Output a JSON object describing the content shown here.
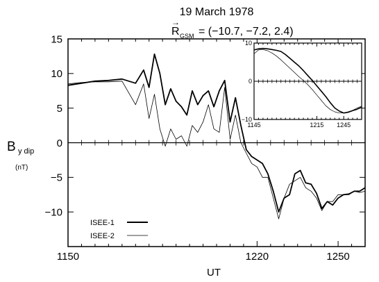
{
  "chart_data": [
    {
      "type": "line",
      "title": "19 March 1978",
      "subtitle": {
        "symbol": "R",
        "subscript": "GSM",
        "value": "= (−10.7, −7.2, 2.4)"
      },
      "xlabel": "UT",
      "ylabel": {
        "main": "B",
        "sub": "y dip",
        "unit": "(nT)"
      },
      "xlim": [
        1150,
        1260
      ],
      "ylim": [
        -15,
        15
      ],
      "xticks": [
        1150,
        1220,
        1250
      ],
      "xtick_labels": [
        "1150",
        "1220",
        "1250"
      ],
      "xtick_minor_step": 5,
      "yticks": [
        -10,
        -5,
        0,
        5,
        10,
        15
      ],
      "ytick_labels": [
        "−10",
        "−5",
        "0",
        "5",
        "10",
        "15"
      ],
      "zero_line": true,
      "legend": {
        "placement": "bottom-left",
        "entries": [
          {
            "label": "ISEE-1",
            "style": "thick"
          },
          {
            "label": "ISEE-2",
            "style": "thin"
          }
        ]
      },
      "series": [
        {
          "name": "ISEE-1",
          "style": "thick",
          "x": [
            1150,
            1155,
            1160,
            1165,
            1170,
            1175,
            1178,
            1180,
            1182,
            1184,
            1186,
            1188,
            1190,
            1192,
            1194,
            1196,
            1198,
            1200,
            1202,
            1204,
            1206,
            1208,
            1210,
            1212,
            1214,
            1216,
            1218,
            1220,
            1222,
            1224,
            1226,
            1228,
            1230,
            1232,
            1234,
            1236,
            1238,
            1240,
            1242,
            1244,
            1246,
            1248,
            1250,
            1252,
            1254,
            1256,
            1258,
            1260
          ],
          "y": [
            8.3,
            8.6,
            8.9,
            9.0,
            9.2,
            8.6,
            10.5,
            8.0,
            12.8,
            10.0,
            5.5,
            7.8,
            6.0,
            5.2,
            4.0,
            7.5,
            5.5,
            6.8,
            7.5,
            5.2,
            7.5,
            9.0,
            3.0,
            6.5,
            2.5,
            -1.0,
            -2.0,
            -2.5,
            -3.0,
            -4.5,
            -7.0,
            -10.0,
            -8.0,
            -7.5,
            -4.5,
            -4.0,
            -5.8,
            -6.0,
            -7.3,
            -9.5,
            -8.5,
            -9.0,
            -8.0,
            -7.5,
            -7.4,
            -7.0,
            -7.0,
            -6.5
          ]
        },
        {
          "name": "ISEE-2",
          "style": "thin",
          "x": [
            1150,
            1155,
            1160,
            1165,
            1170,
            1175,
            1178,
            1180,
            1182,
            1184,
            1186,
            1188,
            1190,
            1192,
            1194,
            1196,
            1198,
            1200,
            1202,
            1204,
            1206,
            1208,
            1210,
            1212,
            1214,
            1216,
            1218,
            1220,
            1222,
            1224,
            1226,
            1228,
            1230,
            1232,
            1234,
            1236,
            1238,
            1240,
            1242,
            1244,
            1246,
            1248,
            1250,
            1252,
            1254,
            1256,
            1258,
            1260
          ],
          "y": [
            8.5,
            8.7,
            8.8,
            8.8,
            8.9,
            5.5,
            8.5,
            3.5,
            7.0,
            2.0,
            -0.5,
            2.0,
            0.5,
            1.0,
            -0.5,
            2.5,
            1.5,
            3.0,
            5.5,
            2.0,
            1.5,
            8.0,
            0.5,
            4.0,
            0.0,
            -1.5,
            -3.0,
            -3.5,
            -5.0,
            -5.0,
            -8.0,
            -11.0,
            -8.0,
            -6.0,
            -5.5,
            -5.0,
            -6.5,
            -7.0,
            -8.0,
            -9.8,
            -8.5,
            -8.5,
            -7.5,
            -7.5,
            -7.5,
            -7.0,
            -7.2,
            -7.0
          ]
        }
      ]
    },
    {
      "type": "line",
      "title": "",
      "xlim": [
        1145,
        1265
      ],
      "ylim": [
        -10,
        10
      ],
      "xticks": [
        1145,
        1215,
        1245
      ],
      "xtick_labels": [
        "1145",
        "1215",
        "1245"
      ],
      "xtick_minor_step": 5,
      "yticks": [
        -10,
        0,
        10
      ],
      "ytick_labels": [
        "−10",
        "0",
        "10"
      ],
      "zero_line": true,
      "series": [
        {
          "name": "",
          "style": "thick",
          "x": [
            1145,
            1150,
            1155,
            1160,
            1165,
            1170,
            1175,
            1180,
            1185,
            1190,
            1195,
            1200,
            1205,
            1210,
            1215,
            1220,
            1225,
            1230,
            1235,
            1240,
            1245,
            1250,
            1255,
            1260,
            1265
          ],
          "y": [
            8.2,
            8.5,
            8.6,
            8.5,
            8.3,
            8.1,
            7.8,
            7.0,
            6.0,
            5.0,
            4.0,
            2.8,
            1.5,
            0.2,
            -1.2,
            -2.6,
            -4.0,
            -5.6,
            -7.0,
            -7.8,
            -8.3,
            -8.1,
            -7.7,
            -7.3,
            -6.8
          ]
        },
        {
          "name": "",
          "style": "thin",
          "x": [
            1145,
            1150,
            1155,
            1160,
            1165,
            1170,
            1175,
            1180,
            1185,
            1190,
            1195,
            1200,
            1205,
            1210,
            1215,
            1220,
            1225,
            1230,
            1235,
            1240,
            1245,
            1250,
            1255,
            1260,
            1265
          ],
          "y": [
            7.2,
            8.2,
            8.3,
            8.0,
            7.4,
            6.6,
            5.6,
            4.5,
            3.4,
            2.3,
            1.2,
            0.2,
            -0.9,
            -2.2,
            -3.6,
            -5.0,
            -6.4,
            -7.4,
            -8.0,
            -8.3,
            -8.3,
            -8.0,
            -7.6,
            -7.0,
            -6.5
          ]
        }
      ]
    }
  ]
}
